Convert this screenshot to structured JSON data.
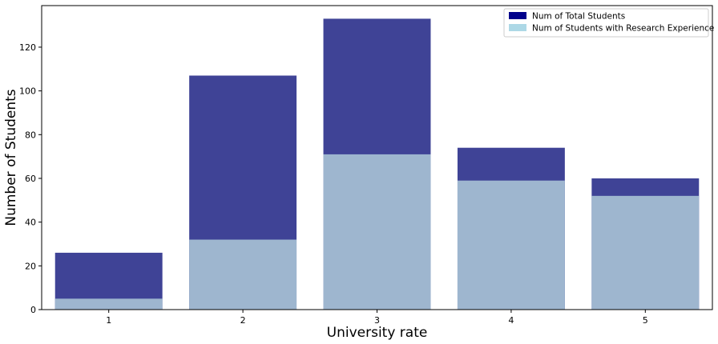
{
  "chart_data": {
    "type": "bar",
    "categories": [
      "1",
      "2",
      "3",
      "4",
      "5"
    ],
    "series": [
      {
        "name": "Num of Total Students",
        "values": [
          26,
          107,
          133,
          74,
          60
        ],
        "color": "#00008b",
        "fill_color": "#3f4396"
      },
      {
        "name": "Num of Students with Research Experience",
        "values": [
          5,
          32,
          71,
          59,
          52
        ],
        "color": "#add8e6",
        "fill_color": "#9eb6cf"
      }
    ],
    "xlabel": "University rate",
    "ylabel": "Number of Students",
    "ylim": [
      0,
      139
    ],
    "yticks": [
      0,
      20,
      40,
      60,
      80,
      100,
      120
    ],
    "grid": false,
    "legend_position": "top-right",
    "bar_style": "overlaid"
  }
}
